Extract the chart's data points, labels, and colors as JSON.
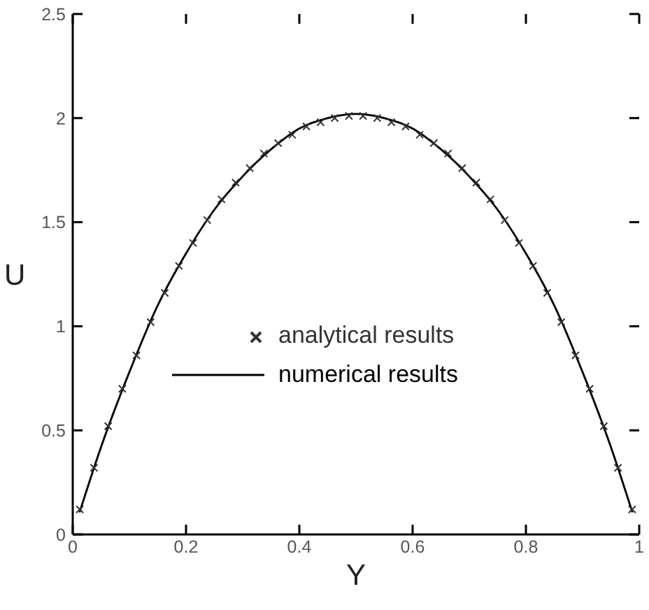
{
  "chart_data": {
    "type": "line",
    "xlabel": "Y",
    "ylabel": "U",
    "xlim": [
      0,
      1
    ],
    "xticks": [
      0,
      0.2,
      0.4,
      0.6,
      0.8,
      1
    ],
    "ylim": [
      0,
      2.5
    ],
    "yticks": [
      0,
      0.5,
      1,
      1.5,
      2,
      2.5
    ],
    "legend": "center",
    "series": [
      {
        "name": "analytical results",
        "type": "scatter",
        "marker": "cross",
        "color": "#333333",
        "x": [
          0.0125,
          0.0375,
          0.0625,
          0.0875,
          0.1125,
          0.1375,
          0.1625,
          0.1875,
          0.2125,
          0.2375,
          0.2625,
          0.2875,
          0.3125,
          0.3375,
          0.3625,
          0.3875,
          0.4125,
          0.4375,
          0.4625,
          0.4875,
          0.5125,
          0.5375,
          0.5625,
          0.5875,
          0.6125,
          0.6375,
          0.6625,
          0.6875,
          0.7125,
          0.7375,
          0.7625,
          0.7875,
          0.8125,
          0.8375,
          0.8625,
          0.8875,
          0.9125,
          0.9375,
          0.9625,
          0.9875
        ],
        "values": [
          0.12,
          0.32,
          0.52,
          0.7,
          0.86,
          1.02,
          1.16,
          1.29,
          1.4,
          1.51,
          1.61,
          1.69,
          1.76,
          1.83,
          1.88,
          1.92,
          1.96,
          1.98,
          2.0,
          2.01,
          2.01,
          2.0,
          1.98,
          1.96,
          1.92,
          1.88,
          1.83,
          1.76,
          1.69,
          1.61,
          1.51,
          1.4,
          1.29,
          1.16,
          1.02,
          0.86,
          0.7,
          0.52,
          0.32,
          0.12
        ]
      },
      {
        "name": "numerical results",
        "type": "line",
        "color": "#000000",
        "x": [
          0.0125,
          0.05,
          0.1,
          0.15,
          0.2,
          0.25,
          0.3,
          0.35,
          0.4,
          0.45,
          0.5,
          0.55,
          0.6,
          0.65,
          0.7,
          0.75,
          0.8,
          0.85,
          0.9,
          0.95,
          0.9875
        ],
        "values": [
          0.11,
          0.42,
          0.78,
          1.1,
          1.35,
          1.56,
          1.72,
          1.85,
          1.95,
          2.0,
          2.02,
          2.0,
          1.95,
          1.85,
          1.72,
          1.56,
          1.35,
          1.1,
          0.78,
          0.42,
          0.11
        ]
      }
    ]
  }
}
